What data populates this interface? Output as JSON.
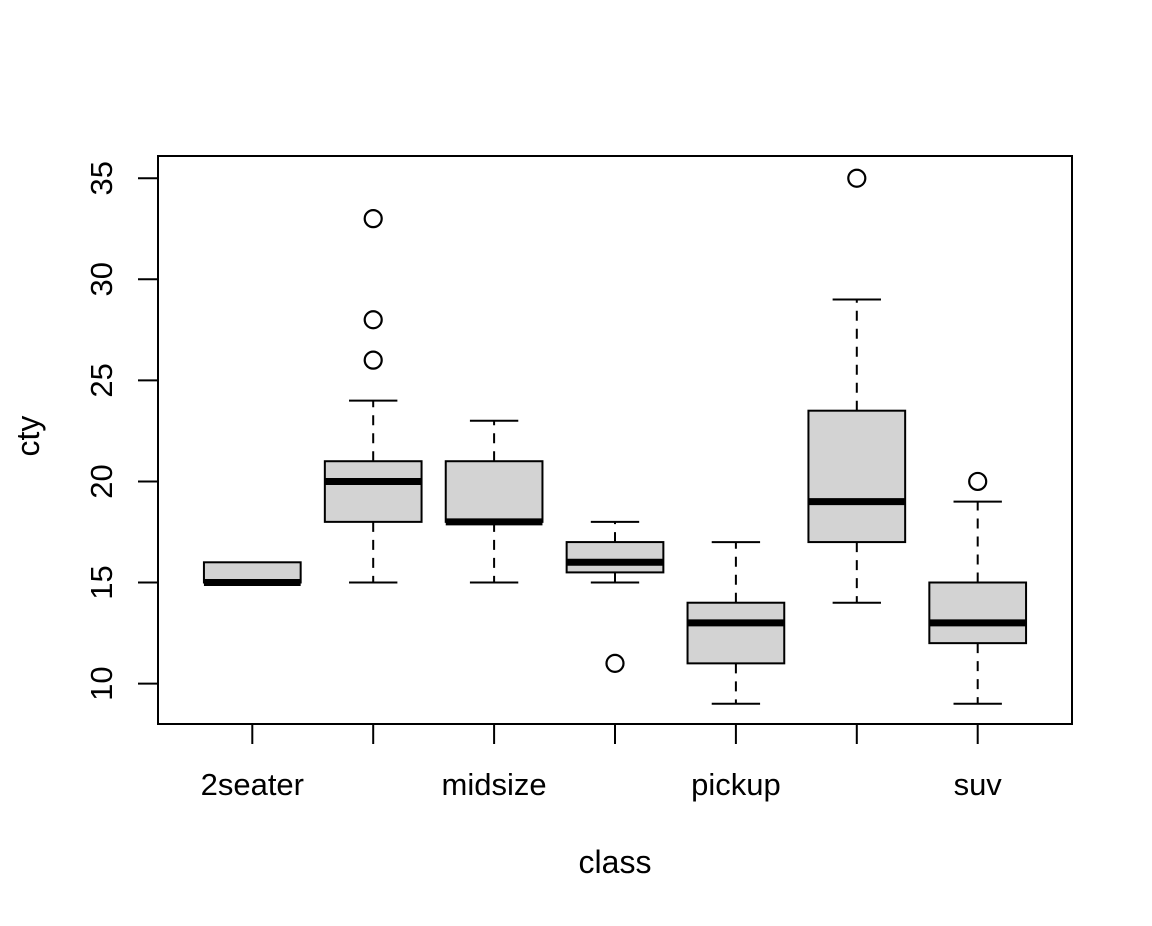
{
  "chart_data": {
    "type": "boxplot",
    "title": "",
    "xlabel": "class",
    "ylabel": "cty",
    "x_tick_labels_visible": [
      "2seater",
      "midsize",
      "pickup",
      "suv"
    ],
    "y_ticks": [
      10,
      15,
      20,
      25,
      30,
      35
    ],
    "ylim": [
      8.0,
      36.1
    ],
    "xlim": [
      0.22,
      7.78
    ],
    "box_width": 0.8,
    "staple_width": 0.4,
    "grid": false,
    "legend": false,
    "groups": [
      {
        "position": 1,
        "label": "2seater",
        "whisker_low": 15,
        "q1": 15,
        "median": 15,
        "q3": 16,
        "whisker_high": 16,
        "outliers": []
      },
      {
        "position": 2,
        "label": "",
        "whisker_low": 15,
        "q1": 18,
        "median": 20,
        "q3": 21,
        "whisker_high": 24,
        "outliers": [
          26,
          28,
          33
        ]
      },
      {
        "position": 3,
        "label": "midsize",
        "whisker_low": 15,
        "q1": 18,
        "median": 18,
        "q3": 21,
        "whisker_high": 23,
        "outliers": []
      },
      {
        "position": 4,
        "label": "",
        "whisker_low": 15,
        "q1": 15.5,
        "median": 16,
        "q3": 17,
        "whisker_high": 18,
        "outliers": [
          11
        ]
      },
      {
        "position": 5,
        "label": "pickup",
        "whisker_low": 9,
        "q1": 11,
        "median": 13,
        "q3": 14,
        "whisker_high": 17,
        "outliers": []
      },
      {
        "position": 6,
        "label": "",
        "whisker_low": 14,
        "q1": 17,
        "median": 19,
        "q3": 23.5,
        "whisker_high": 29,
        "outliers": [
          35
        ]
      },
      {
        "position": 7,
        "label": "suv",
        "whisker_low": 9,
        "q1": 12,
        "median": 13,
        "q3": 15,
        "whisker_high": 19,
        "outliers": [
          20
        ]
      }
    ],
    "colors": {
      "box_fill": "#d3d3d3",
      "line": "#000000",
      "background": "#ffffff"
    }
  }
}
